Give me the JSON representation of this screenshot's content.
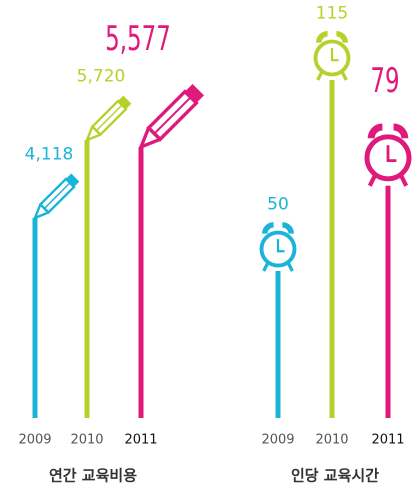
{
  "chart_data": [
    {
      "type": "pencil-bar",
      "title": "연간 교육비용",
      "categories": [
        "2009",
        "2010",
        "2011"
      ],
      "values": [
        4118,
        5720,
        5577
      ],
      "value_labels": [
        "4,118",
        "5,720",
        "5,577"
      ],
      "colors": [
        "#1ab4d8",
        "#b5d22c",
        "#e0197d"
      ]
    },
    {
      "type": "clock-bar",
      "title": "인당 교육시간",
      "categories": [
        "2009",
        "2010",
        "2011"
      ],
      "values": [
        50,
        115,
        79
      ],
      "colors": [
        "#1ab4d8",
        "#b5d22c",
        "#e0197d"
      ]
    }
  ]
}
